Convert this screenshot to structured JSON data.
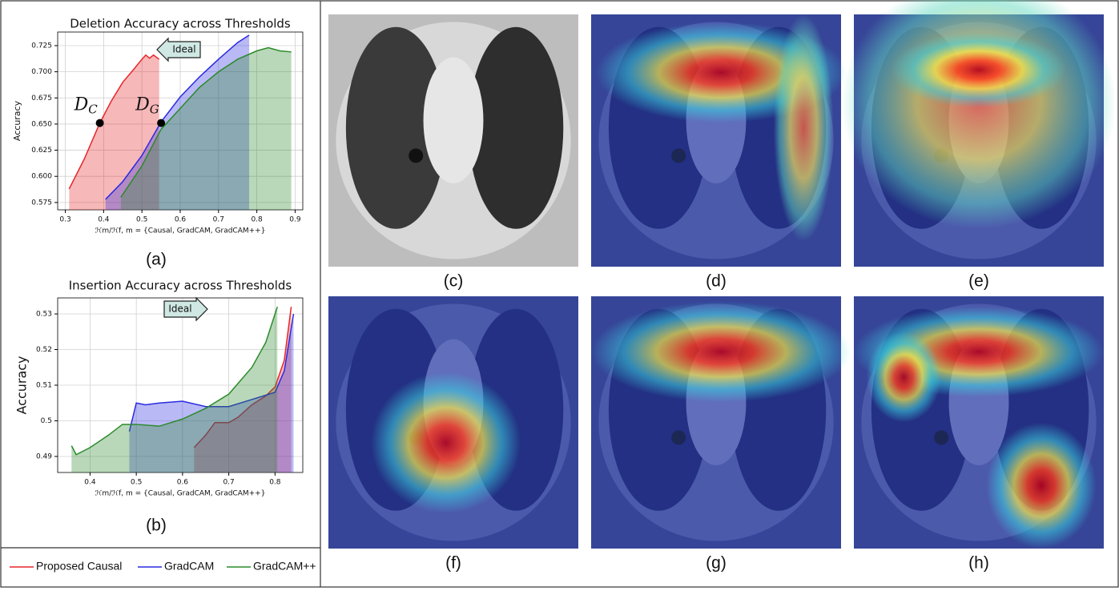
{
  "chart_data": [
    {
      "type": "line",
      "title": "Deletion Accuracy across Thresholds",
      "caption": "(a)",
      "x_label": "ℋm/ℋf, m = {Causal, GradCAM, GradCAM++}",
      "y_label": "Accuracy",
      "xlim": [
        0.28,
        0.92
      ],
      "ylim": [
        0.568,
        0.738
      ],
      "grid": true,
      "fill": true,
      "ideal": "Ideal",
      "ideal_direction": "left",
      "xticks": [
        0.3,
        0.4,
        0.5,
        0.6,
        0.7,
        0.8,
        0.9
      ],
      "yticks": [
        0.575,
        {
          "value": 0.6,
          "label": "0.600"
        },
        0.625,
        {
          "value": 0.65,
          "label": "0.650"
        },
        0.675,
        {
          "value": 0.7,
          "label": "0.700"
        },
        0.725
      ],
      "series": [
        {
          "name": "Proposed Causal",
          "color": "#e8262a",
          "x": [
            0.31,
            0.35,
            0.39,
            0.42,
            0.45,
            0.48,
            0.5,
            0.51,
            0.52,
            0.53,
            0.545
          ],
          "values": [
            0.588,
            0.617,
            0.651,
            0.672,
            0.69,
            0.703,
            0.712,
            0.716,
            0.713,
            0.716,
            0.712
          ]
        },
        {
          "name": "GradCAM",
          "color": "#2a2ae0",
          "x": [
            0.405,
            0.45,
            0.5,
            0.55,
            0.6,
            0.65,
            0.7,
            0.75,
            0.78
          ],
          "values": [
            0.578,
            0.595,
            0.62,
            0.652,
            0.676,
            0.695,
            0.712,
            0.728,
            0.735
          ]
        },
        {
          "name": "GradCAM++",
          "color": "#2a8a2a",
          "x": [
            0.445,
            0.5,
            0.55,
            0.6,
            0.65,
            0.7,
            0.75,
            0.8,
            0.83,
            0.86,
            0.89
          ],
          "values": [
            0.58,
            0.61,
            0.645,
            0.665,
            0.685,
            0.7,
            0.712,
            0.72,
            0.723,
            0.72,
            0.719
          ]
        }
      ],
      "annotations": [
        {
          "text": "D",
          "sub": "C",
          "x": 0.39,
          "y": 0.651
        },
        {
          "text": "D",
          "sub": "G",
          "x": 0.55,
          "y": 0.651
        }
      ]
    },
    {
      "type": "line",
      "title": "Insertion Accuracy across Thresholds",
      "caption": "(b)",
      "x_label": "ℋm/ℋf, m = {Causal, GradCAM, GradCAM++}",
      "y_label": "Accuracy",
      "xlim": [
        0.33,
        0.86
      ],
      "ylim": [
        0.4855,
        0.5345
      ],
      "grid": true,
      "fill": true,
      "ideal": "Ideal",
      "ideal_direction": "right",
      "xticks": [
        0.4,
        0.5,
        0.6,
        0.7,
        0.8
      ],
      "yticks": [
        0.49,
        0.5,
        0.51,
        0.52,
        0.53
      ],
      "series": [
        {
          "name": "Proposed Causal",
          "color": "#e8262a",
          "x": [
            0.625,
            0.65,
            0.67,
            0.7,
            0.72,
            0.75,
            0.78,
            0.8,
            0.82,
            0.835
          ],
          "values": [
            0.4925,
            0.496,
            0.4995,
            0.4995,
            0.501,
            0.5045,
            0.507,
            0.5095,
            0.517,
            0.532
          ]
        },
        {
          "name": "GradCAM",
          "color": "#2a2ae0",
          "x": [
            0.485,
            0.5,
            0.52,
            0.55,
            0.6,
            0.65,
            0.7,
            0.75,
            0.8,
            0.82,
            0.84
          ],
          "values": [
            0.497,
            0.505,
            0.5045,
            0.505,
            0.5055,
            0.504,
            0.504,
            0.506,
            0.508,
            0.514,
            0.53
          ]
        },
        {
          "name": "GradCAM++",
          "color": "#2a8a2a",
          "x": [
            0.36,
            0.37,
            0.4,
            0.44,
            0.47,
            0.5,
            0.55,
            0.6,
            0.65,
            0.7,
            0.75,
            0.78,
            0.805
          ],
          "values": [
            0.493,
            0.4905,
            0.4925,
            0.496,
            0.499,
            0.499,
            0.4985,
            0.5005,
            0.5035,
            0.5075,
            0.515,
            0.522,
            0.532
          ]
        }
      ],
      "annotations": []
    }
  ],
  "panels": [
    {
      "caption": "(c)"
    },
    {
      "caption": "(d)"
    },
    {
      "caption": "(e)"
    },
    {
      "caption": "(f)"
    },
    {
      "caption": "(g)"
    },
    {
      "caption": "(h)"
    }
  ]
}
